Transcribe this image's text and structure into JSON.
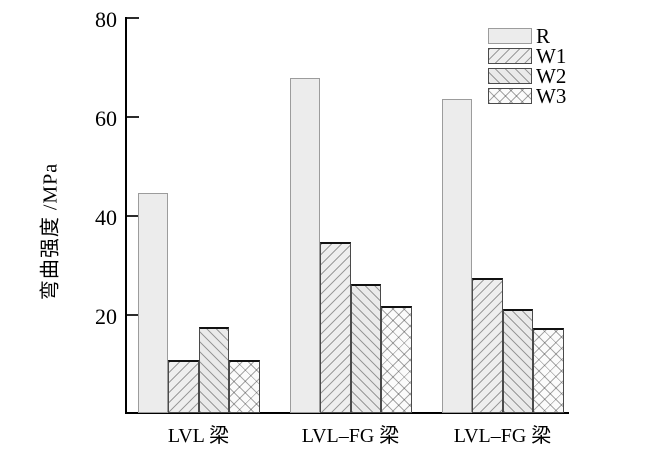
{
  "figure": {
    "background": "#ffffff"
  },
  "chart_data": {
    "type": "bar",
    "title": "",
    "xlabel": "",
    "ylabel": "弯曲强度 /MPa",
    "ylim": [
      0,
      80
    ],
    "yticks": [
      20,
      40,
      60,
      80
    ],
    "grid": false,
    "legend_position": "top-right",
    "categories": [
      "LVL 梁",
      "LVL–FG 梁",
      "LVL–FG 梁"
    ],
    "series": [
      {
        "name": "R",
        "pattern": "solid",
        "values": [
          44.4,
          67.6,
          63.5
        ]
      },
      {
        "name": "W1",
        "pattern": "diagonal-forward",
        "values": [
          10.7,
          34.6,
          27.3
        ]
      },
      {
        "name": "W2",
        "pattern": "diagonal-backward",
        "values": [
          17.3,
          26.0,
          21.0
        ]
      },
      {
        "name": "W3",
        "pattern": "crosshatch",
        "values": [
          10.7,
          21.7,
          17.2
        ]
      }
    ],
    "colors": {
      "bar_fill": "#ececec",
      "solid_bar_border": "#9c9c9c",
      "hatched_bar_border": "#333333",
      "axis": "#000000",
      "text": "#000000"
    }
  }
}
